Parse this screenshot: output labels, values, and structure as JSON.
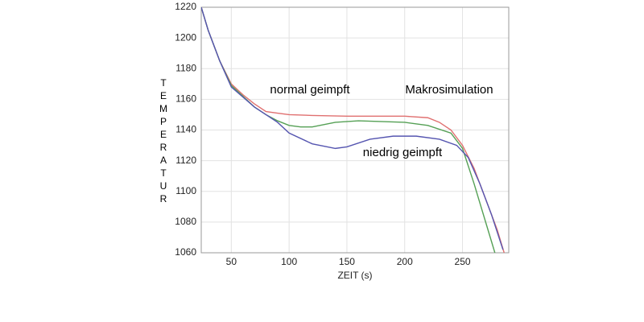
{
  "chart_data": {
    "type": "line",
    "x_label": "ZEIT (s)",
    "y_label": "TEMPERATUR",
    "xlim": [
      24,
      290
    ],
    "ylim": [
      1060,
      1220
    ],
    "xticks": [
      50,
      100,
      150,
      200,
      250
    ],
    "yticks": [
      1060,
      1080,
      1100,
      1120,
      1140,
      1160,
      1180,
      1200,
      1220
    ],
    "grid": true,
    "series": [
      {
        "name": "Makrosimulation",
        "color": "#e07070",
        "x": [
          24,
          30,
          40,
          50,
          60,
          70,
          80,
          90,
          100,
          120,
          150,
          200,
          220,
          230,
          240,
          250,
          260,
          270,
          280,
          286
        ],
        "values": [
          1220,
          1205,
          1185,
          1170,
          1163,
          1157,
          1152,
          1151,
          1150,
          1149.5,
          1149,
          1149,
          1148,
          1145,
          1140,
          1130,
          1115,
          1095,
          1075,
          1060
        ]
      },
      {
        "name": "normal geimpft",
        "color": "#55a055",
        "x": [
          24,
          30,
          40,
          50,
          60,
          70,
          80,
          90,
          100,
          110,
          120,
          140,
          160,
          200,
          220,
          240,
          250,
          260,
          270,
          278
        ],
        "values": [
          1220,
          1205,
          1185,
          1169,
          1162,
          1155,
          1150,
          1146,
          1143,
          1142,
          1142,
          1145,
          1146,
          1145,
          1143,
          1138,
          1128,
          1105,
          1080,
          1060
        ]
      },
      {
        "name": "niedrig geimpft",
        "color": "#5555b0",
        "x": [
          24,
          30,
          40,
          50,
          70,
          90,
          100,
          120,
          140,
          150,
          170,
          190,
          210,
          230,
          245,
          255,
          265,
          275,
          285
        ],
        "values": [
          1220,
          1205,
          1185,
          1168,
          1155,
          1145,
          1138,
          1131,
          1128,
          1129,
          1134,
          1136,
          1136,
          1134,
          1130,
          1122,
          1105,
          1085,
          1062
        ]
      }
    ]
  }
}
